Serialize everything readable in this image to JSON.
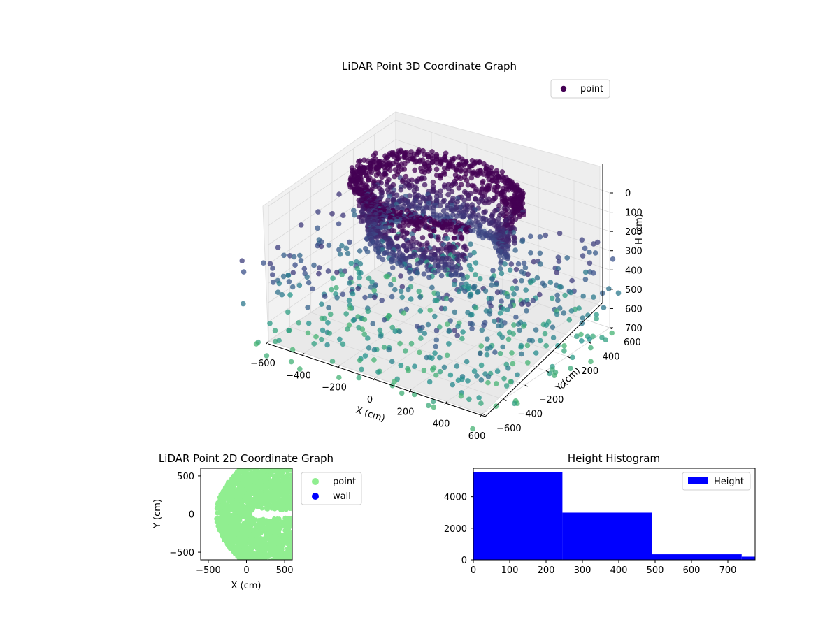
{
  "colors": {
    "point3d_dark": "#440154",
    "point3d_mid": "#3b528b",
    "point3d_light": "#21918c",
    "point2d": "#90ee90",
    "wall": "#0000ff",
    "histogram": "#0000ff",
    "pane": "#f2f2f2",
    "grid": "#d9d9d9"
  },
  "chart_data": [
    {
      "type": "scatter3d",
      "title": "LiDAR Point 3D Coordinate Graph",
      "xlabel": "X (cm)",
      "ylabel": "Y (cm)",
      "zlabel": "H (cm)",
      "xticks": [
        "−600",
        "−400",
        "−200",
        "0",
        "200",
        "400",
        "600"
      ],
      "yticks": [
        "−600",
        "−400",
        "−200",
        "0",
        "200",
        "400",
        "600"
      ],
      "zticks": [
        "0",
        "100",
        "200",
        "300",
        "400",
        "500",
        "600",
        "700"
      ],
      "xlim": [
        -600,
        600
      ],
      "ylim": [
        -600,
        600
      ],
      "zlim": [
        0,
        700
      ],
      "z_axis_inverted": true,
      "legend": [
        "point"
      ],
      "legend_position": "top-right",
      "grid": true,
      "series": [
        {
          "name": "point",
          "description_groups": [
            {
              "shape": "ring",
              "radius": 470,
              "h_range": [
                0,
                60
              ]
            },
            {
              "shape": "ring",
              "radius": 420,
              "h_range": [
                40,
                230
              ]
            },
            {
              "shape": "ring",
              "radius": 380,
              "h_range": [
                200,
                330
              ]
            },
            {
              "shape": "scatter",
              "x_range": [
                -600,
                600
              ],
              "y_range": [
                -600,
                600
              ],
              "h_range": [
                100,
                750
              ]
            }
          ]
        }
      ]
    },
    {
      "type": "scatter",
      "title": "LiDAR Point 2D Coordinate Graph",
      "xlabel": "X (cm)",
      "ylabel": "Y (cm)",
      "xticks": [
        "−500",
        "0",
        "500"
      ],
      "yticks": [
        "500",
        "0",
        "−500"
      ],
      "xlim": [
        -600,
        600
      ],
      "ylim": [
        -600,
        600
      ],
      "legend": [
        "point",
        "wall"
      ],
      "legend_position": "outside-right",
      "series": [
        {
          "name": "point",
          "color": "#90ee90",
          "region": "dense cloud filling the area, with a notch opening to the right near Y = 0"
        },
        {
          "name": "wall",
          "color": "#0000ff",
          "values": []
        }
      ]
    },
    {
      "type": "bar",
      "title": "Height Histogram",
      "xlabel": "",
      "ylabel": "",
      "xticks": [
        "0",
        "100",
        "200",
        "300",
        "400",
        "500",
        "600",
        "700"
      ],
      "yticks": [
        "0",
        "2000",
        "4000"
      ],
      "xlim": [
        0,
        775
      ],
      "ylim": [
        0,
        5800
      ],
      "legend": [
        "Height"
      ],
      "legend_position": "top-right",
      "bins": [
        {
          "from": 0,
          "to": 245,
          "count": 5550
        },
        {
          "from": 245,
          "to": 492,
          "count": 2990
        },
        {
          "from": 492,
          "to": 738,
          "count": 350
        },
        {
          "from": 738,
          "to": 775,
          "count": 200
        }
      ]
    }
  ]
}
